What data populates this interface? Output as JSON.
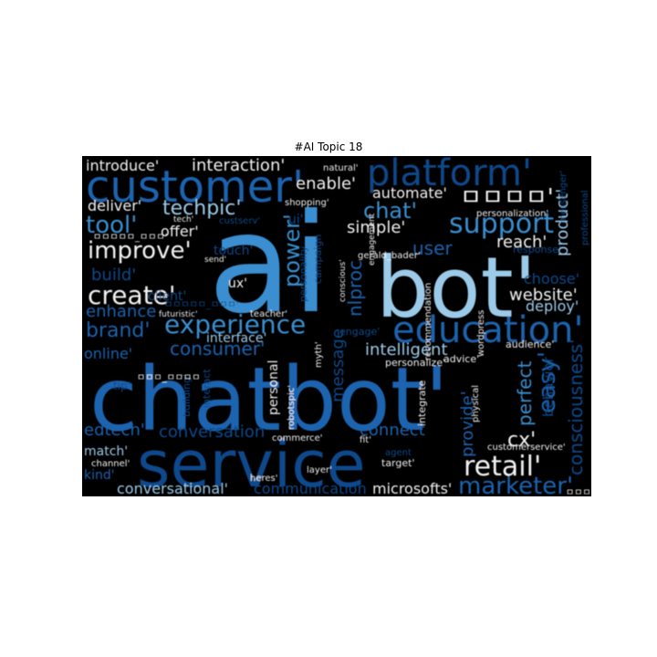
{
  "title": "#AI Topic 18",
  "colors": {
    "background": "#000000",
    "white": "#f2f2f2",
    "light": "#9ccbe9",
    "blue": "#3a8fd0",
    "mid": "#1c64b0",
    "dark": "#0f4a8c",
    "faint": "#0c3968"
  },
  "words": [
    {
      "text": "ai",
      "color": "blue"
    },
    {
      "text": "chatbot'",
      "color": "mid"
    },
    {
      "text": "bot'",
      "color": "light"
    },
    {
      "text": "service",
      "color": "dark"
    },
    {
      "text": "customer'",
      "color": "mid"
    },
    {
      "text": "platform'",
      "color": "dark"
    },
    {
      "text": "education'",
      "color": "mid"
    },
    {
      "text": "support",
      "color": "blue"
    },
    {
      "text": "experience",
      "color": "blue"
    },
    {
      "text": "retail'",
      "color": "white"
    },
    {
      "text": "marketer'",
      "color": "mid"
    },
    {
      "text": "create'",
      "color": "white"
    },
    {
      "text": "improve'",
      "color": "white"
    },
    {
      "text": "tool'",
      "color": "blue"
    },
    {
      "text": "techpic'",
      "color": "light"
    },
    {
      "text": "brand'",
      "color": "mid"
    },
    {
      "text": "consumer'",
      "color": "mid"
    },
    {
      "text": "power'",
      "color": "blue"
    },
    {
      "text": "chat'",
      "color": "blue"
    },
    {
      "text": "user",
      "color": "mid"
    },
    {
      "text": "easy'",
      "color": "mid"
    },
    {
      "text": "cx'",
      "color": "white"
    },
    {
      "text": "perfect",
      "color": "blue"
    },
    {
      "text": "consciousness'",
      "color": "dark"
    },
    {
      "text": "intelligent",
      "color": "light"
    },
    {
      "text": "provide'",
      "color": "mid"
    },
    {
      "text": "connect",
      "color": "mid"
    },
    {
      "text": "conversation",
      "color": "dark"
    },
    {
      "text": "edtech'",
      "color": "mid"
    },
    {
      "text": "message",
      "color": "dark"
    },
    {
      "text": "nlproc",
      "color": "mid"
    },
    {
      "text": "website'",
      "color": "white"
    },
    {
      "text": "deploy'",
      "color": "light"
    },
    {
      "text": "reach'",
      "color": "white"
    },
    {
      "text": "simple'",
      "color": "white"
    },
    {
      "text": "automate'",
      "color": "white"
    },
    {
      "text": "enable'",
      "color": "white"
    },
    {
      "text": "interaction'",
      "color": "white"
    },
    {
      "text": "introduce'",
      "color": "white"
    },
    {
      "text": "deliver'",
      "color": "white"
    },
    {
      "text": "offer'",
      "color": "white"
    },
    {
      "text": "build'",
      "color": "dark"
    },
    {
      "text": "enhance",
      "color": "mid"
    },
    {
      "text": "online'",
      "color": "mid"
    },
    {
      "text": "conversational'",
      "color": "light"
    },
    {
      "text": "communication",
      "color": "dark"
    },
    {
      "text": "microsofts'",
      "color": "white"
    },
    {
      "text": "match'",
      "color": "light"
    },
    {
      "text": "kind'",
      "color": "mid"
    },
    {
      "text": "product'",
      "color": "light"
    },
    {
      "text": "choose'",
      "color": "dark"
    },
    {
      "text": "behavior",
      "color": "dark"
    },
    {
      "text": "interface'",
      "color": "light"
    },
    {
      "text": "personal",
      "color": "white"
    },
    {
      "text": "ux'",
      "color": "white"
    },
    {
      "text": "touch'",
      "color": "dark"
    },
    {
      "text": "ui'",
      "color": "dark"
    },
    {
      "text": "target'",
      "color": "white"
    },
    {
      "text": "fit'",
      "color": "white"
    },
    {
      "text": "layer'",
      "color": "white"
    },
    {
      "text": "heres'",
      "color": "white"
    },
    {
      "text": "commerce'",
      "color": "white"
    },
    {
      "text": "teacher'",
      "color": "white"
    },
    {
      "text": "myth'",
      "color": "white"
    },
    {
      "text": "robotspic'",
      "color": "white"
    },
    {
      "text": "natural'",
      "color": "white"
    },
    {
      "text": "shopping'",
      "color": "white"
    },
    {
      "text": "tech'",
      "color": "white"
    },
    {
      "text": "send'",
      "color": "white"
    },
    {
      "text": "futuristic'",
      "color": "white"
    },
    {
      "text": "client'",
      "color": "dark"
    },
    {
      "text": "campaign",
      "color": "dark"
    },
    {
      "text": "conscious'",
      "color": "white"
    },
    {
      "text": "personality",
      "color": "dark"
    },
    {
      "text": "engage'",
      "color": "dark"
    },
    {
      "text": "personalize'",
      "color": "white"
    },
    {
      "text": "advice'",
      "color": "white"
    },
    {
      "text": "audience'",
      "color": "white"
    },
    {
      "text": "response'",
      "color": "dark"
    },
    {
      "text": "wordpress",
      "color": "white"
    },
    {
      "text": "recommendation",
      "color": "white"
    },
    {
      "text": "integrate",
      "color": "white"
    },
    {
      "text": "physical",
      "color": "white"
    },
    {
      "text": "customerservice'",
      "color": "white"
    },
    {
      "text": "agent",
      "color": "dark"
    },
    {
      "text": "personalization'",
      "color": "white"
    },
    {
      "text": "messenger'",
      "color": "dark"
    },
    {
      "text": "professional",
      "color": "dark"
    },
    {
      "text": "gerald_bader'",
      "color": "white"
    },
    {
      "text": "engagement",
      "color": "white"
    },
    {
      "text": "tip'",
      "color": "dark"
    },
    {
      "text": "building'",
      "color": "dark"
    },
    {
      "text": "interact",
      "color": "dark"
    },
    {
      "text": "channel'",
      "color": "white"
    },
    {
      "text": "custserv'",
      "color": "dark"
    },
    {
      "text": "ㅁㅁㅁㅁ'",
      "color": "white"
    },
    {
      "text": "ㅁㅁㅁㅁㅁ_ㅁㅁㅁ'",
      "color": "white"
    },
    {
      "text": "ㅁㅁㅁ_ㅁㅁㅁㅁ",
      "color": "white"
    },
    {
      "text": "ㅁㅁㅁㅁㅁ_ㅁㅁㅁ'",
      "color": "dark"
    },
    {
      "text": "ㅁㅁㅁ'",
      "color": "white"
    }
  ]
}
